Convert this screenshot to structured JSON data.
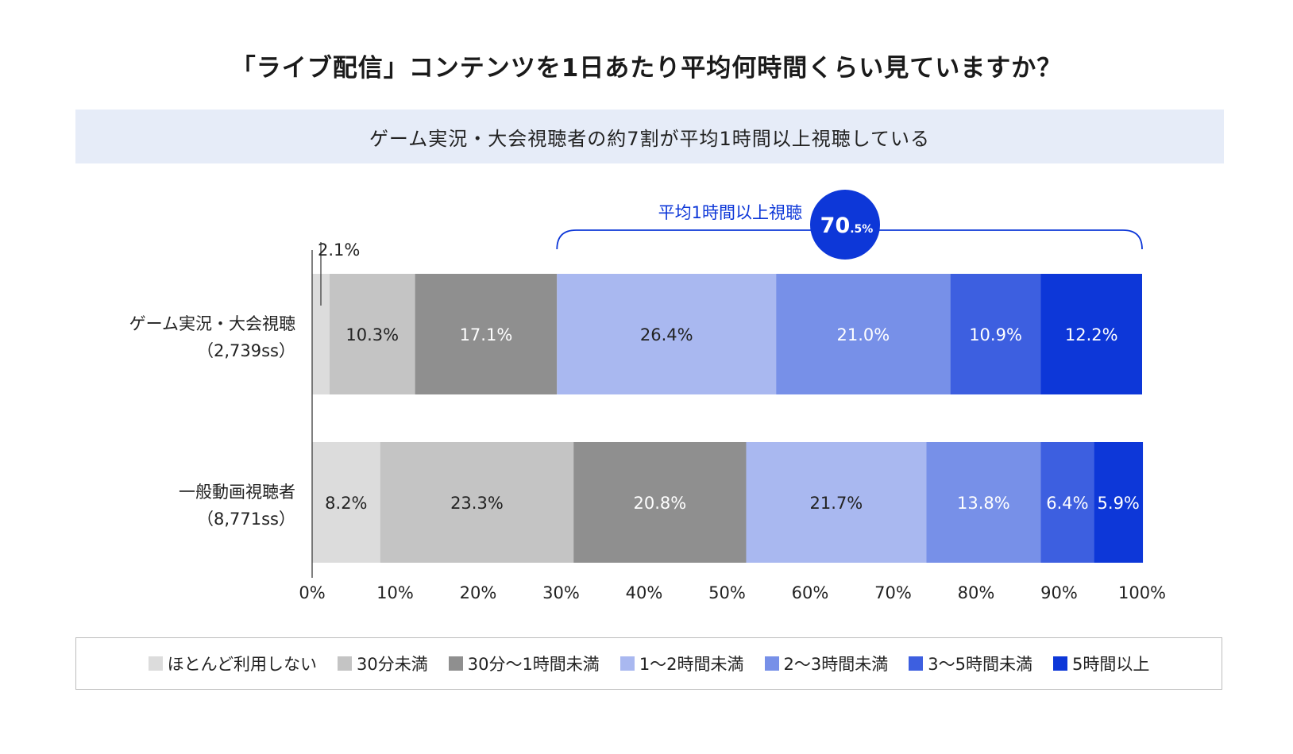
{
  "title": "「ライブ配信」コンテンツを1日あたり平均何時間くらい見ていますか？",
  "subtitle": "ゲーム実況・大会視聴者の約7割が平均1時間以上視聴している",
  "chart_data": {
    "type": "bar",
    "orientation": "horizontal",
    "stacked": true,
    "percent": true,
    "xlim": [
      0,
      100
    ],
    "x_ticks": [
      "0%",
      "10%",
      "20%",
      "30%",
      "40%",
      "50%",
      "60%",
      "70%",
      "80%",
      "90%",
      "100%"
    ],
    "categories": [
      {
        "label": "ゲーム実況・大会視聴",
        "sublabel": "（2,739ss）"
      },
      {
        "label": "一般動画視聴者",
        "sublabel": "（8,771ss）"
      }
    ],
    "series": [
      {
        "name": "ほとんど利用しない",
        "color": "#dcdcdc",
        "values": [
          2.1,
          8.2
        ],
        "labels": [
          "2.1%",
          "8.2%"
        ],
        "label_color": "#222222"
      },
      {
        "name": "30分未満",
        "color": "#c4c4c4",
        "values": [
          10.3,
          23.3
        ],
        "labels": [
          "10.3%",
          "23.3%"
        ],
        "label_color": "#222222"
      },
      {
        "name": "30分〜1時間未満",
        "color": "#8f8f8f",
        "values": [
          17.1,
          20.8
        ],
        "labels": [
          "17.1%",
          "20.8%"
        ],
        "label_color": "#ffffff"
      },
      {
        "name": "1〜2時間未満",
        "color": "#a9b8f0",
        "values": [
          26.4,
          21.7
        ],
        "labels": [
          "26.4%",
          "21.7%"
        ],
        "label_color": "#222222"
      },
      {
        "name": "2〜3時間未満",
        "color": "#7790e8",
        "values": [
          21.0,
          13.8
        ],
        "labels": [
          "21.0%",
          "13.8%"
        ],
        "label_color": "#ffffff"
      },
      {
        "name": "3〜5時間未満",
        "color": "#3d5fe0",
        "values": [
          10.9,
          6.4
        ],
        "labels": [
          "10.9%",
          "6.4%"
        ],
        "label_color": "#ffffff"
      },
      {
        "name": "5時間以上",
        "color": "#0d37d8",
        "values": [
          12.2,
          5.9
        ],
        "labels": [
          "12.2%",
          "5.9%"
        ],
        "label_color": "#ffffff"
      }
    ],
    "annotation": {
      "text": "平均1時間以上視聴",
      "value_main": "70",
      "value_sub": ".5%",
      "from": 29.5,
      "to": 100,
      "color": "#0d37d8"
    }
  }
}
